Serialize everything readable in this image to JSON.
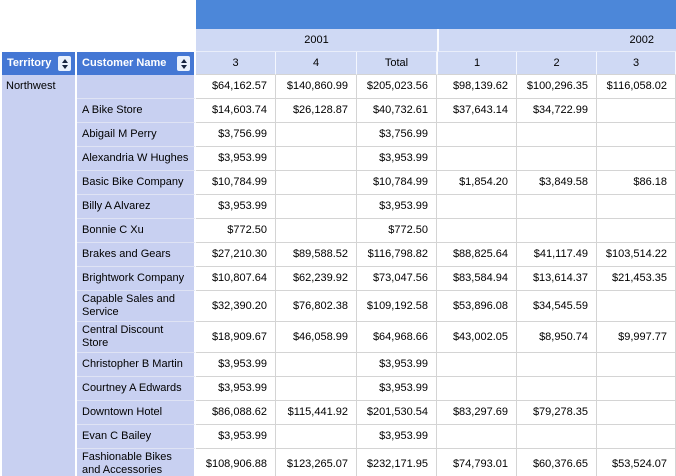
{
  "report": {
    "colors": {
      "top_band": "#4C87D9",
      "sort_header_bg": "#4477D4",
      "column_header_bg": "#CFD9F4",
      "row_header_bg": "#C8D0F1",
      "gridline": "#D4D4D4"
    },
    "icons": {
      "sort_up": "▲",
      "sort_down": "▼"
    },
    "years": [
      {
        "label": "2001"
      },
      {
        "label": "2002"
      }
    ],
    "row_headers": [
      {
        "label": "Territory"
      },
      {
        "label": "Customer Name"
      }
    ],
    "quarter_columns": [
      "3",
      "4",
      "Total",
      "1",
      "2",
      "3"
    ],
    "rows": [
      {
        "territory": "Northwest",
        "customer": "",
        "values": [
          "$64,162.57",
          "$140,860.99",
          "$205,023.56",
          "$98,139.62",
          "$100,296.35",
          "$116,058.02"
        ]
      },
      {
        "customer": "A Bike Store",
        "values": [
          "$14,603.74",
          "$26,128.87",
          "$40,732.61",
          "$37,643.14",
          "$34,722.99",
          ""
        ]
      },
      {
        "customer": "Abigail M Perry",
        "values": [
          "$3,756.99",
          "",
          "$3,756.99",
          "",
          "",
          ""
        ]
      },
      {
        "customer": "Alexandria W Hughes",
        "values": [
          "$3,953.99",
          "",
          "$3,953.99",
          "",
          "",
          ""
        ]
      },
      {
        "customer": "Basic Bike Company",
        "values": [
          "$10,784.99",
          "",
          "$10,784.99",
          "$1,854.20",
          "$3,849.58",
          "$86.18"
        ]
      },
      {
        "customer": "Billy A Alvarez",
        "values": [
          "$3,953.99",
          "",
          "$3,953.99",
          "",
          "",
          ""
        ]
      },
      {
        "customer": "Bonnie C Xu",
        "values": [
          "$772.50",
          "",
          "$772.50",
          "",
          "",
          ""
        ]
      },
      {
        "customer": "Brakes and Gears",
        "values": [
          "$27,210.30",
          "$89,588.52",
          "$116,798.82",
          "$88,825.64",
          "$41,117.49",
          "$103,514.22"
        ]
      },
      {
        "customer": "Brightwork Company",
        "values": [
          "$10,807.64",
          "$62,239.92",
          "$73,047.56",
          "$83,584.94",
          "$13,614.37",
          "$21,453.35"
        ]
      },
      {
        "customer": "Capable Sales and Service",
        "values": [
          "$32,390.20",
          "$76,802.38",
          "$109,192.58",
          "$53,896.08",
          "$34,545.59",
          ""
        ]
      },
      {
        "customer": "Central Discount Store",
        "values": [
          "$18,909.67",
          "$46,058.99",
          "$64,968.66",
          "$43,002.05",
          "$8,950.74",
          "$9,997.77"
        ]
      },
      {
        "customer": "Christopher B Martin",
        "values": [
          "$3,953.99",
          "",
          "$3,953.99",
          "",
          "",
          ""
        ]
      },
      {
        "customer": "Courtney A Edwards",
        "values": [
          "$3,953.99",
          "",
          "$3,953.99",
          "",
          "",
          ""
        ]
      },
      {
        "customer": "Downtown Hotel",
        "values": [
          "$86,088.62",
          "$115,441.92",
          "$201,530.54",
          "$83,297.69",
          "$79,278.35",
          ""
        ]
      },
      {
        "customer": "Evan C Bailey",
        "values": [
          "$3,953.99",
          "",
          "$3,953.99",
          "",
          "",
          ""
        ]
      },
      {
        "customer": "Fashionable Bikes and Accessories",
        "values": [
          "$108,906.88",
          "$123,265.07",
          "$232,171.95",
          "$74,793.01",
          "$60,376.65",
          "$53,524.07"
        ]
      }
    ]
  }
}
